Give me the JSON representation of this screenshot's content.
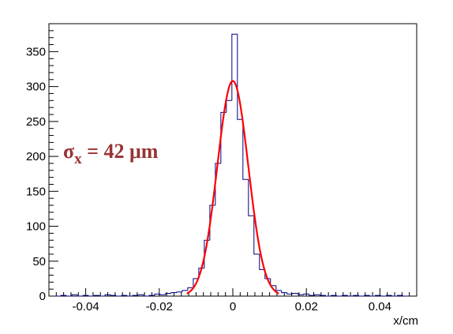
{
  "chart_data": {
    "type": "histogram",
    "xlabel": "x/cm",
    "ylabel": "",
    "xlim": [
      -0.05,
      0.05
    ],
    "ylim": [
      0,
      390
    ],
    "x_ticks": [
      -0.04,
      -0.02,
      0,
      0.02,
      0.04
    ],
    "x_tick_labels": [
      "-0.04",
      "-0.02",
      "0",
      "0.02",
      "0.04"
    ],
    "y_ticks": [
      0,
      50,
      100,
      150,
      200,
      250,
      300,
      350
    ],
    "y_tick_labels": [
      "0",
      "50",
      "100",
      "150",
      "200",
      "250",
      "300",
      "350"
    ],
    "grid": false,
    "bin_width": 0.0015,
    "bins": [
      [
        -0.0475,
        0
      ],
      [
        -0.046,
        1
      ],
      [
        -0.0445,
        0
      ],
      [
        -0.043,
        2
      ],
      [
        -0.0415,
        0
      ],
      [
        -0.04,
        1
      ],
      [
        -0.0385,
        0
      ],
      [
        -0.037,
        1
      ],
      [
        -0.0355,
        0
      ],
      [
        -0.034,
        2
      ],
      [
        -0.0325,
        1
      ],
      [
        -0.031,
        0
      ],
      [
        -0.0295,
        1
      ],
      [
        -0.028,
        0
      ],
      [
        -0.0265,
        1
      ],
      [
        -0.025,
        2
      ],
      [
        -0.0235,
        0
      ],
      [
        -0.022,
        1
      ],
      [
        -0.0205,
        3
      ],
      [
        -0.019,
        2
      ],
      [
        -0.0175,
        4
      ],
      [
        -0.016,
        5
      ],
      [
        -0.0145,
        6
      ],
      [
        -0.013,
        8
      ],
      [
        -0.0115,
        12
      ],
      [
        -0.01,
        25
      ],
      [
        -0.0085,
        40
      ],
      [
        -0.007,
        80
      ],
      [
        -0.0055,
        130
      ],
      [
        -0.004,
        190
      ],
      [
        -0.0025,
        263
      ],
      [
        -0.001,
        280
      ],
      [
        0.0005,
        375
      ],
      [
        0.002,
        253
      ],
      [
        0.0035,
        167
      ],
      [
        0.005,
        115
      ],
      [
        0.0065,
        60
      ],
      [
        0.008,
        38
      ],
      [
        0.0095,
        25
      ],
      [
        0.011,
        15
      ],
      [
        0.0125,
        8
      ],
      [
        0.014,
        5
      ],
      [
        0.0155,
        3
      ],
      [
        0.017,
        4
      ],
      [
        0.0185,
        2
      ],
      [
        0.02,
        3
      ],
      [
        0.0215,
        1
      ],
      [
        0.023,
        2
      ],
      [
        0.0245,
        1
      ],
      [
        0.026,
        0
      ],
      [
        0.0275,
        1
      ],
      [
        0.029,
        0
      ],
      [
        0.0305,
        1
      ],
      [
        0.032,
        0
      ],
      [
        0.0335,
        1
      ],
      [
        0.035,
        0
      ],
      [
        0.0365,
        1
      ],
      [
        0.038,
        0
      ],
      [
        0.0395,
        1
      ],
      [
        0.041,
        0
      ],
      [
        0.0425,
        1
      ],
      [
        0.044,
        0
      ],
      [
        0.0455,
        1
      ],
      [
        0.047,
        0
      ]
    ],
    "fit": {
      "function": "gaussian",
      "amplitude": 308,
      "mean": 0.0,
      "sigma": 0.0042,
      "range": [
        -0.0125,
        0.0125
      ]
    },
    "annotation": {
      "symbol": "σ",
      "subscript": "x",
      "text": " = 42 μm"
    },
    "colors": {
      "histogram": "#000080",
      "fit": "#ff0000",
      "annotation": "#993333",
      "axes": "#000000"
    }
  }
}
